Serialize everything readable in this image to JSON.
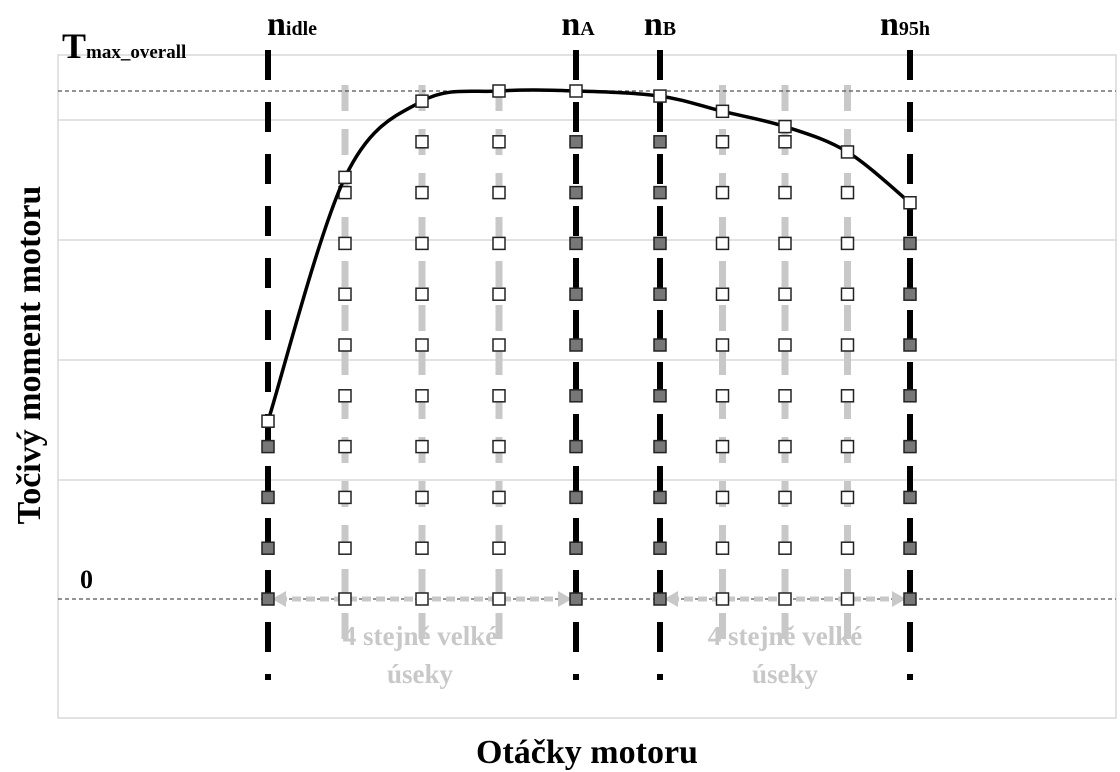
{
  "chart_data": {
    "type": "line",
    "title": "",
    "xlabel": "Otáčky motoru",
    "ylabel": "Točivý moment motoru",
    "y_reference_labels": {
      "top": "T",
      "top_sub": "max_overall",
      "zero": "0"
    },
    "speed_markers": [
      {
        "id": "n_idle",
        "main": "n",
        "sub": "idle"
      },
      {
        "id": "n_A",
        "main": "n",
        "sub": "A"
      },
      {
        "id": "n_B",
        "main": "n",
        "sub": "B"
      },
      {
        "id": "n_95h",
        "main": "n",
        "sub": "95h"
      }
    ],
    "torque_curve_percent": [
      35,
      83,
      98,
      100,
      100,
      99,
      96,
      93,
      88,
      78
    ],
    "grid_step_percent": 10,
    "segment_annotations": [
      {
        "line1": "4 stejně velké",
        "line2": "úseky"
      },
      {
        "line1": "4 stejně velké",
        "line2": "úseky"
      }
    ],
    "colors": {
      "curve": "#000000",
      "marker_line": "#000000",
      "subdivision_line": "#c8c8c8",
      "gridline": "#d9d9d9",
      "annotation": "#c8c8c8"
    }
  }
}
